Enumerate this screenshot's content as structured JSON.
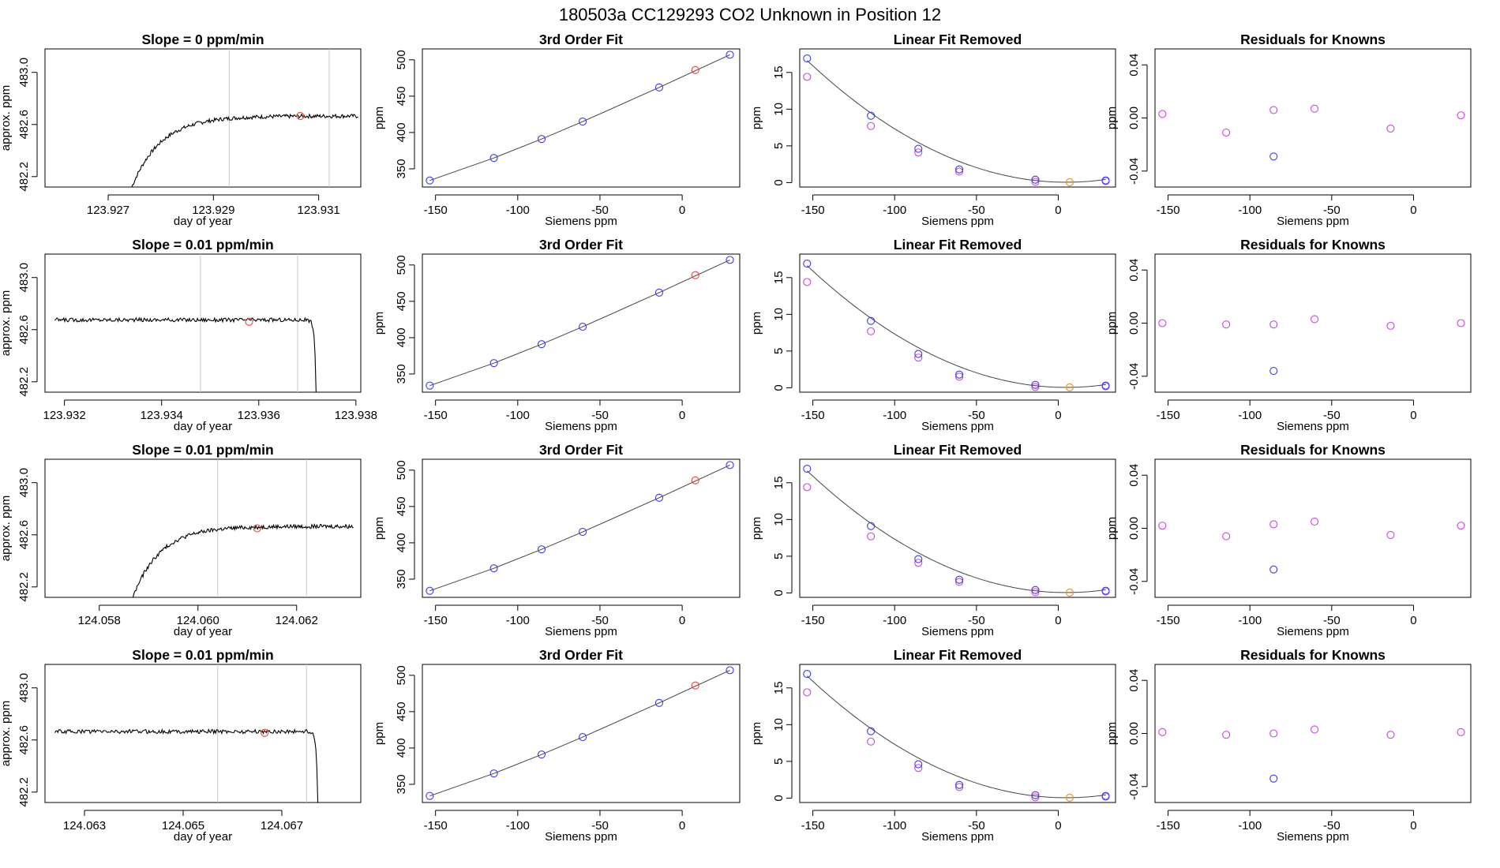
{
  "title": "180503a      CC129293    CO2 Unknown in Position  12",
  "colors": {
    "axis": "#000000",
    "line": "#000000",
    "fit": "#444444",
    "vline": "#c8c8c8",
    "blue": "#3a3aef",
    "magenta": "#d040e8",
    "red": "#e8453a",
    "orange": "#ee8a1c"
  },
  "chart_data": [
    {
      "type": "line",
      "title": "Slope =  0  ppm/min",
      "xlabel": "day of year",
      "ylabel": "approx. ppm",
      "xlim": [
        123.9258,
        123.9318
      ],
      "ylim": [
        482.12,
        483.18
      ],
      "xticks": [
        "123.927",
        "123.929",
        "123.931"
      ],
      "yticks": [
        "482.2",
        "482.6",
        "483.0"
      ],
      "vlines": [
        123.9293,
        123.9312
      ],
      "marker": {
        "x": 123.93065,
        "y": 482.665
      },
      "trace": {
        "kind": "rise",
        "x0": 123.92745,
        "x1": 123.93175,
        "plateau": 482.665,
        "start": 482.12,
        "tau": 0.00055
      }
    },
    {
      "type": "scatter",
      "title": "3rd Order Fit",
      "xlabel": "Siemens ppm",
      "ylabel": "ppm",
      "xlim": [
        -158,
        35
      ],
      "ylim": [
        325,
        515
      ],
      "xticks": [
        -150,
        -100,
        -50,
        0
      ],
      "yticks": [
        350,
        400,
        450,
        500
      ],
      "knowns_x": [
        -153.5,
        -114.5,
        -85.5,
        -60.5,
        -14,
        29
      ],
      "knowns_y": [
        334,
        365,
        391,
        415,
        462,
        507
      ],
      "unknown": {
        "x": 8,
        "y": 486
      }
    },
    {
      "type": "scatter",
      "title": "Linear Fit Removed",
      "xlabel": "Siemens ppm",
      "ylabel": "ppm",
      "xlim": [
        -158,
        35
      ],
      "ylim": [
        -0.6,
        18.2
      ],
      "xticks": [
        -150,
        -100,
        -50,
        0
      ],
      "yticks": [
        0,
        5,
        10,
        15
      ],
      "knowns_x": [
        -153.5,
        -114.5,
        -85.5,
        -60.5,
        -14,
        29
      ],
      "knowns_y": [
        16.9,
        9.1,
        4.6,
        1.8,
        0.4,
        0.3
      ],
      "companion_y": [
        14.4,
        7.7,
        4.1,
        1.5,
        0.1,
        0.2
      ],
      "unknown": {
        "x": 7,
        "y": 0.05
      },
      "fit": {
        "vertex_x": 5,
        "a": 0.00066,
        "c": 0.05
      }
    },
    {
      "type": "scatter",
      "title": "Residuals for Knowns",
      "xlabel": "Siemens ppm",
      "ylabel": "ppm",
      "xlim": [
        -158,
        35
      ],
      "ylim": [
        -0.052,
        0.052
      ],
      "xticks": [
        -150,
        -100,
        -50,
        0
      ],
      "yticks": [
        "-0.04",
        "0.00",
        "0.04"
      ],
      "residuals_x": [
        -153.5,
        -114.5,
        -85.5,
        -60.5,
        -14,
        29
      ],
      "residuals_y": [
        0.003,
        -0.011,
        0.006,
        0.007,
        -0.008,
        0.002
      ],
      "outlier": {
        "x": -85.5,
        "y": -0.029
      }
    },
    {
      "type": "line",
      "title": "Slope =  0.01  ppm/min",
      "xlabel": "day of year",
      "ylabel": "approx. ppm",
      "xlim": [
        123.9316,
        123.9381
      ],
      "ylim": [
        482.12,
        483.18
      ],
      "xticks": [
        "123.932",
        "123.934",
        "123.936",
        "123.938"
      ],
      "yticks": [
        "482.2",
        "482.6",
        "483.0"
      ],
      "vlines": [
        123.9348,
        123.9368
      ],
      "marker": {
        "x": 123.9358,
        "y": 482.66
      },
      "trace": {
        "kind": "drop",
        "x0": 123.9318,
        "x1": 123.93718,
        "plateau": 482.675,
        "start": 482.12,
        "tau": 3e-05
      }
    },
    {
      "type": "scatter",
      "title": "3rd Order Fit",
      "xlabel": "Siemens ppm",
      "ylabel": "ppm",
      "xlim": [
        -158,
        35
      ],
      "ylim": [
        325,
        515
      ],
      "xticks": [
        -150,
        -100,
        -50,
        0
      ],
      "yticks": [
        350,
        400,
        450,
        500
      ],
      "knowns_x": [
        -153.5,
        -114.5,
        -85.5,
        -60.5,
        -14,
        29
      ],
      "knowns_y": [
        334,
        365,
        391,
        415,
        462,
        507
      ],
      "unknown": {
        "x": 8,
        "y": 486
      }
    },
    {
      "type": "scatter",
      "title": "Linear Fit Removed",
      "xlabel": "Siemens ppm",
      "ylabel": "ppm",
      "xlim": [
        -158,
        35
      ],
      "ylim": [
        -0.6,
        18.2
      ],
      "xticks": [
        -150,
        -100,
        -50,
        0
      ],
      "yticks": [
        0,
        5,
        10,
        15
      ],
      "knowns_x": [
        -153.5,
        -114.5,
        -85.5,
        -60.5,
        -14,
        29
      ],
      "knowns_y": [
        16.9,
        9.1,
        4.6,
        1.8,
        0.4,
        0.3
      ],
      "companion_y": [
        14.4,
        7.7,
        4.1,
        1.5,
        0.1,
        0.2
      ],
      "unknown": {
        "x": 7,
        "y": 0.05
      },
      "fit": {
        "vertex_x": 5,
        "a": 0.00066,
        "c": 0.05
      }
    },
    {
      "type": "scatter",
      "title": "Residuals for Knowns",
      "xlabel": "Siemens ppm",
      "ylabel": "ppm",
      "xlim": [
        -158,
        35
      ],
      "ylim": [
        -0.052,
        0.052
      ],
      "xticks": [
        -150,
        -100,
        -50,
        0
      ],
      "yticks": [
        "-0.04",
        "0.00",
        "0.04"
      ],
      "residuals_x": [
        -153.5,
        -114.5,
        -85.5,
        -60.5,
        -14,
        29
      ],
      "residuals_y": [
        0.0,
        -0.001,
        -0.001,
        0.003,
        -0.002,
        0.0
      ],
      "outlier": {
        "x": -85.5,
        "y": -0.036
      }
    },
    {
      "type": "line",
      "title": "Slope =  0.01  ppm/min",
      "xlabel": "day of year",
      "ylabel": "approx. ppm",
      "xlim": [
        124.0569,
        124.0633
      ],
      "ylim": [
        482.12,
        483.18
      ],
      "xticks": [
        "124.058",
        "124.060",
        "124.062"
      ],
      "yticks": [
        "482.2",
        "482.6",
        "483.0"
      ],
      "vlines": [
        124.0604,
        124.0622
      ],
      "marker": {
        "x": 124.0612,
        "y": 482.65
      },
      "trace": {
        "kind": "rise",
        "x0": 124.05868,
        "x1": 124.06315,
        "plateau": 482.665,
        "start": 482.12,
        "tau": 0.00055
      }
    },
    {
      "type": "scatter",
      "title": "3rd Order Fit",
      "xlabel": "Siemens ppm",
      "ylabel": "ppm",
      "xlim": [
        -158,
        35
      ],
      "ylim": [
        325,
        515
      ],
      "xticks": [
        -150,
        -100,
        -50,
        0
      ],
      "yticks": [
        350,
        400,
        450,
        500
      ],
      "knowns_x": [
        -153.5,
        -114.5,
        -85.5,
        -60.5,
        -14,
        29
      ],
      "knowns_y": [
        334,
        365,
        391,
        415,
        462,
        507
      ],
      "unknown": {
        "x": 8,
        "y": 486
      }
    },
    {
      "type": "scatter",
      "title": "Linear Fit Removed",
      "xlabel": "Siemens ppm",
      "ylabel": "ppm",
      "xlim": [
        -158,
        35
      ],
      "ylim": [
        -0.6,
        18.2
      ],
      "xticks": [
        -150,
        -100,
        -50,
        0
      ],
      "yticks": [
        0,
        5,
        10,
        15
      ],
      "knowns_x": [
        -153.5,
        -114.5,
        -85.5,
        -60.5,
        -14,
        29
      ],
      "knowns_y": [
        16.9,
        9.1,
        4.6,
        1.8,
        0.4,
        0.3
      ],
      "companion_y": [
        14.4,
        7.7,
        4.1,
        1.5,
        0.1,
        0.2
      ],
      "unknown": {
        "x": 7,
        "y": 0.05
      },
      "fit": {
        "vertex_x": 5,
        "a": 0.00066,
        "c": 0.05
      }
    },
    {
      "type": "scatter",
      "title": "Residuals for Knowns",
      "xlabel": "Siemens ppm",
      "ylabel": "ppm",
      "xlim": [
        -158,
        35
      ],
      "ylim": [
        -0.052,
        0.052
      ],
      "xticks": [
        -150,
        -100,
        -50,
        0
      ],
      "yticks": [
        "-0.04",
        "0.00",
        "0.04"
      ],
      "residuals_x": [
        -153.5,
        -114.5,
        -85.5,
        -60.5,
        -14,
        29
      ],
      "residuals_y": [
        0.002,
        -0.006,
        0.003,
        0.005,
        -0.005,
        0.002
      ],
      "outlier": {
        "x": -85.5,
        "y": -0.031
      }
    },
    {
      "type": "line",
      "title": "Slope =  0.01  ppm/min",
      "xlabel": "day of year",
      "ylabel": "approx. ppm",
      "xlim": [
        124.0622,
        124.0686
      ],
      "ylim": [
        482.12,
        483.18
      ],
      "xticks": [
        "124.063",
        "124.065",
        "124.067"
      ],
      "yticks": [
        "482.2",
        "482.6",
        "483.0"
      ],
      "vlines": [
        124.0657,
        124.0675
      ],
      "marker": {
        "x": 124.06665,
        "y": 482.655
      },
      "trace": {
        "kind": "drop",
        "x0": 124.0624,
        "x1": 124.06773,
        "plateau": 482.665,
        "start": 482.12,
        "tau": 3e-05
      }
    },
    {
      "type": "scatter",
      "title": "3rd Order Fit",
      "xlabel": "Siemens ppm",
      "ylabel": "ppm",
      "xlim": [
        -158,
        35
      ],
      "ylim": [
        325,
        515
      ],
      "xticks": [
        -150,
        -100,
        -50,
        0
      ],
      "yticks": [
        350,
        400,
        450,
        500
      ],
      "knowns_x": [
        -153.5,
        -114.5,
        -85.5,
        -60.5,
        -14,
        29
      ],
      "knowns_y": [
        334,
        365,
        391,
        415,
        462,
        507
      ],
      "unknown": {
        "x": 8,
        "y": 486
      }
    },
    {
      "type": "scatter",
      "title": "Linear Fit Removed",
      "xlabel": "Siemens ppm",
      "ylabel": "ppm",
      "xlim": [
        -158,
        35
      ],
      "ylim": [
        -0.6,
        18.2
      ],
      "xticks": [
        -150,
        -100,
        -50,
        0
      ],
      "yticks": [
        0,
        5,
        10,
        15
      ],
      "knowns_x": [
        -153.5,
        -114.5,
        -85.5,
        -60.5,
        -14,
        29
      ],
      "knowns_y": [
        16.9,
        9.1,
        4.6,
        1.8,
        0.4,
        0.3
      ],
      "companion_y": [
        14.4,
        7.7,
        4.1,
        1.5,
        0.1,
        0.2
      ],
      "unknown": {
        "x": 7,
        "y": 0.05
      },
      "fit": {
        "vertex_x": 5,
        "a": 0.00066,
        "c": 0.05
      }
    },
    {
      "type": "scatter",
      "title": "Residuals for Knowns",
      "xlabel": "Siemens ppm",
      "ylabel": "ppm",
      "xlim": [
        -158,
        35
      ],
      "ylim": [
        -0.052,
        0.052
      ],
      "xticks": [
        -150,
        -100,
        -50,
        0
      ],
      "yticks": [
        "-0.04",
        "0.00",
        "0.04"
      ],
      "residuals_x": [
        -153.5,
        -114.5,
        -85.5,
        -60.5,
        -14,
        29
      ],
      "residuals_y": [
        0.001,
        -0.001,
        0.0,
        0.003,
        -0.001,
        0.001
      ],
      "outlier": {
        "x": -85.5,
        "y": -0.034
      }
    }
  ]
}
